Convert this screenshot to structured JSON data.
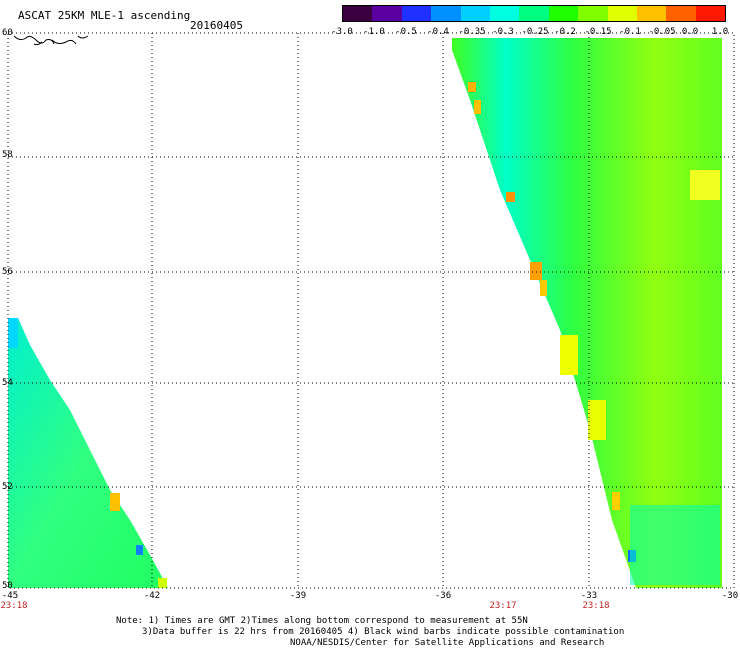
{
  "header": {
    "title": "ASCAT 25KM MLE-1 ascending",
    "date": "20160405"
  },
  "colorbar": {
    "labels": [
      "-3.0",
      "-1.0",
      "-0.5",
      "-0.4",
      "-0.35",
      "-0.3",
      "-0.25",
      "-0.2",
      "-0.15",
      "-0.1",
      "-0.05",
      "0.0",
      "1.0"
    ],
    "colors": [
      "#3a0040",
      "#5a00a0",
      "#2030ff",
      "#0090ff",
      "#00d0ff",
      "#00ffe0",
      "#00ff80",
      "#20ff00",
      "#80ff00",
      "#e0ff00",
      "#ffc000",
      "#ff6000",
      "#ff1800"
    ]
  },
  "axes": {
    "lat_labels": [
      "60",
      "58",
      "56",
      "54",
      "52",
      "50"
    ],
    "lon_labels": [
      "-45",
      "-42",
      "-39",
      "-36",
      "-33",
      "-30"
    ]
  },
  "times": [
    "23:18",
    "23:17",
    "23:18"
  ],
  "notes": {
    "line1": "Note: 1) Times are GMT 2)Times along bottom correspond to measurement at 55N",
    "line2": "3)Data buffer is 22 hrs from 20160405 4) Black wind barbs indicate possible contamination",
    "line3": "NOAA/NESDIS/Center for Satellite Applications and Research"
  }
}
